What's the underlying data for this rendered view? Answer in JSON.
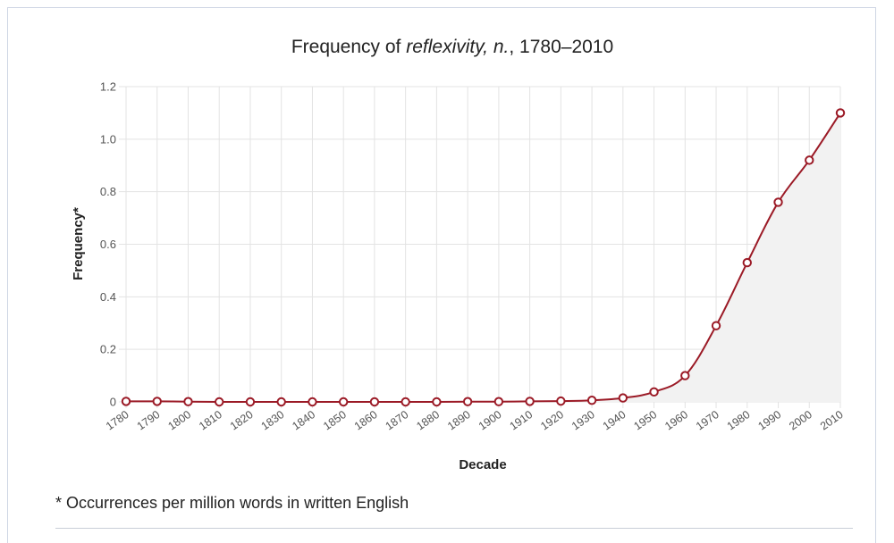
{
  "chart_data": {
    "type": "line",
    "title_parts": [
      "Frequency of ",
      "reflexivity, n.",
      ", 1780–2010"
    ],
    "xlabel": "Decade",
    "ylabel": "Frequency*",
    "ylim": [
      0,
      1.2
    ],
    "yticks": [
      0,
      0.2,
      0.4,
      0.6,
      0.8,
      1.0,
      1.2
    ],
    "ytick_labels": [
      "0",
      "0.2",
      "0.4",
      "0.6",
      "0.8",
      "1.0",
      "1.2"
    ],
    "categories": [
      "1780",
      "1790",
      "1800",
      "1810",
      "1820",
      "1830",
      "1840",
      "1850",
      "1860",
      "1870",
      "1880",
      "1890",
      "1900",
      "1910",
      "1920",
      "1930",
      "1940",
      "1950",
      "1960",
      "1970",
      "1980",
      "1990",
      "2000",
      "2010"
    ],
    "series": [
      {
        "values": [
          0.002,
          0.002,
          0.001,
          0.0,
          0.0,
          0.0,
          0.0,
          0.0,
          0.0,
          0.0,
          0.0,
          0.001,
          0.001,
          0.002,
          0.003,
          0.006,
          0.015,
          0.038,
          0.1,
          0.29,
          0.53,
          0.76,
          0.92,
          1.1
        ],
        "color": "#9b1a26"
      }
    ],
    "grid": true,
    "area_fill": "#f2f2f2"
  },
  "footnote": "* Occurrences per million words in written English"
}
